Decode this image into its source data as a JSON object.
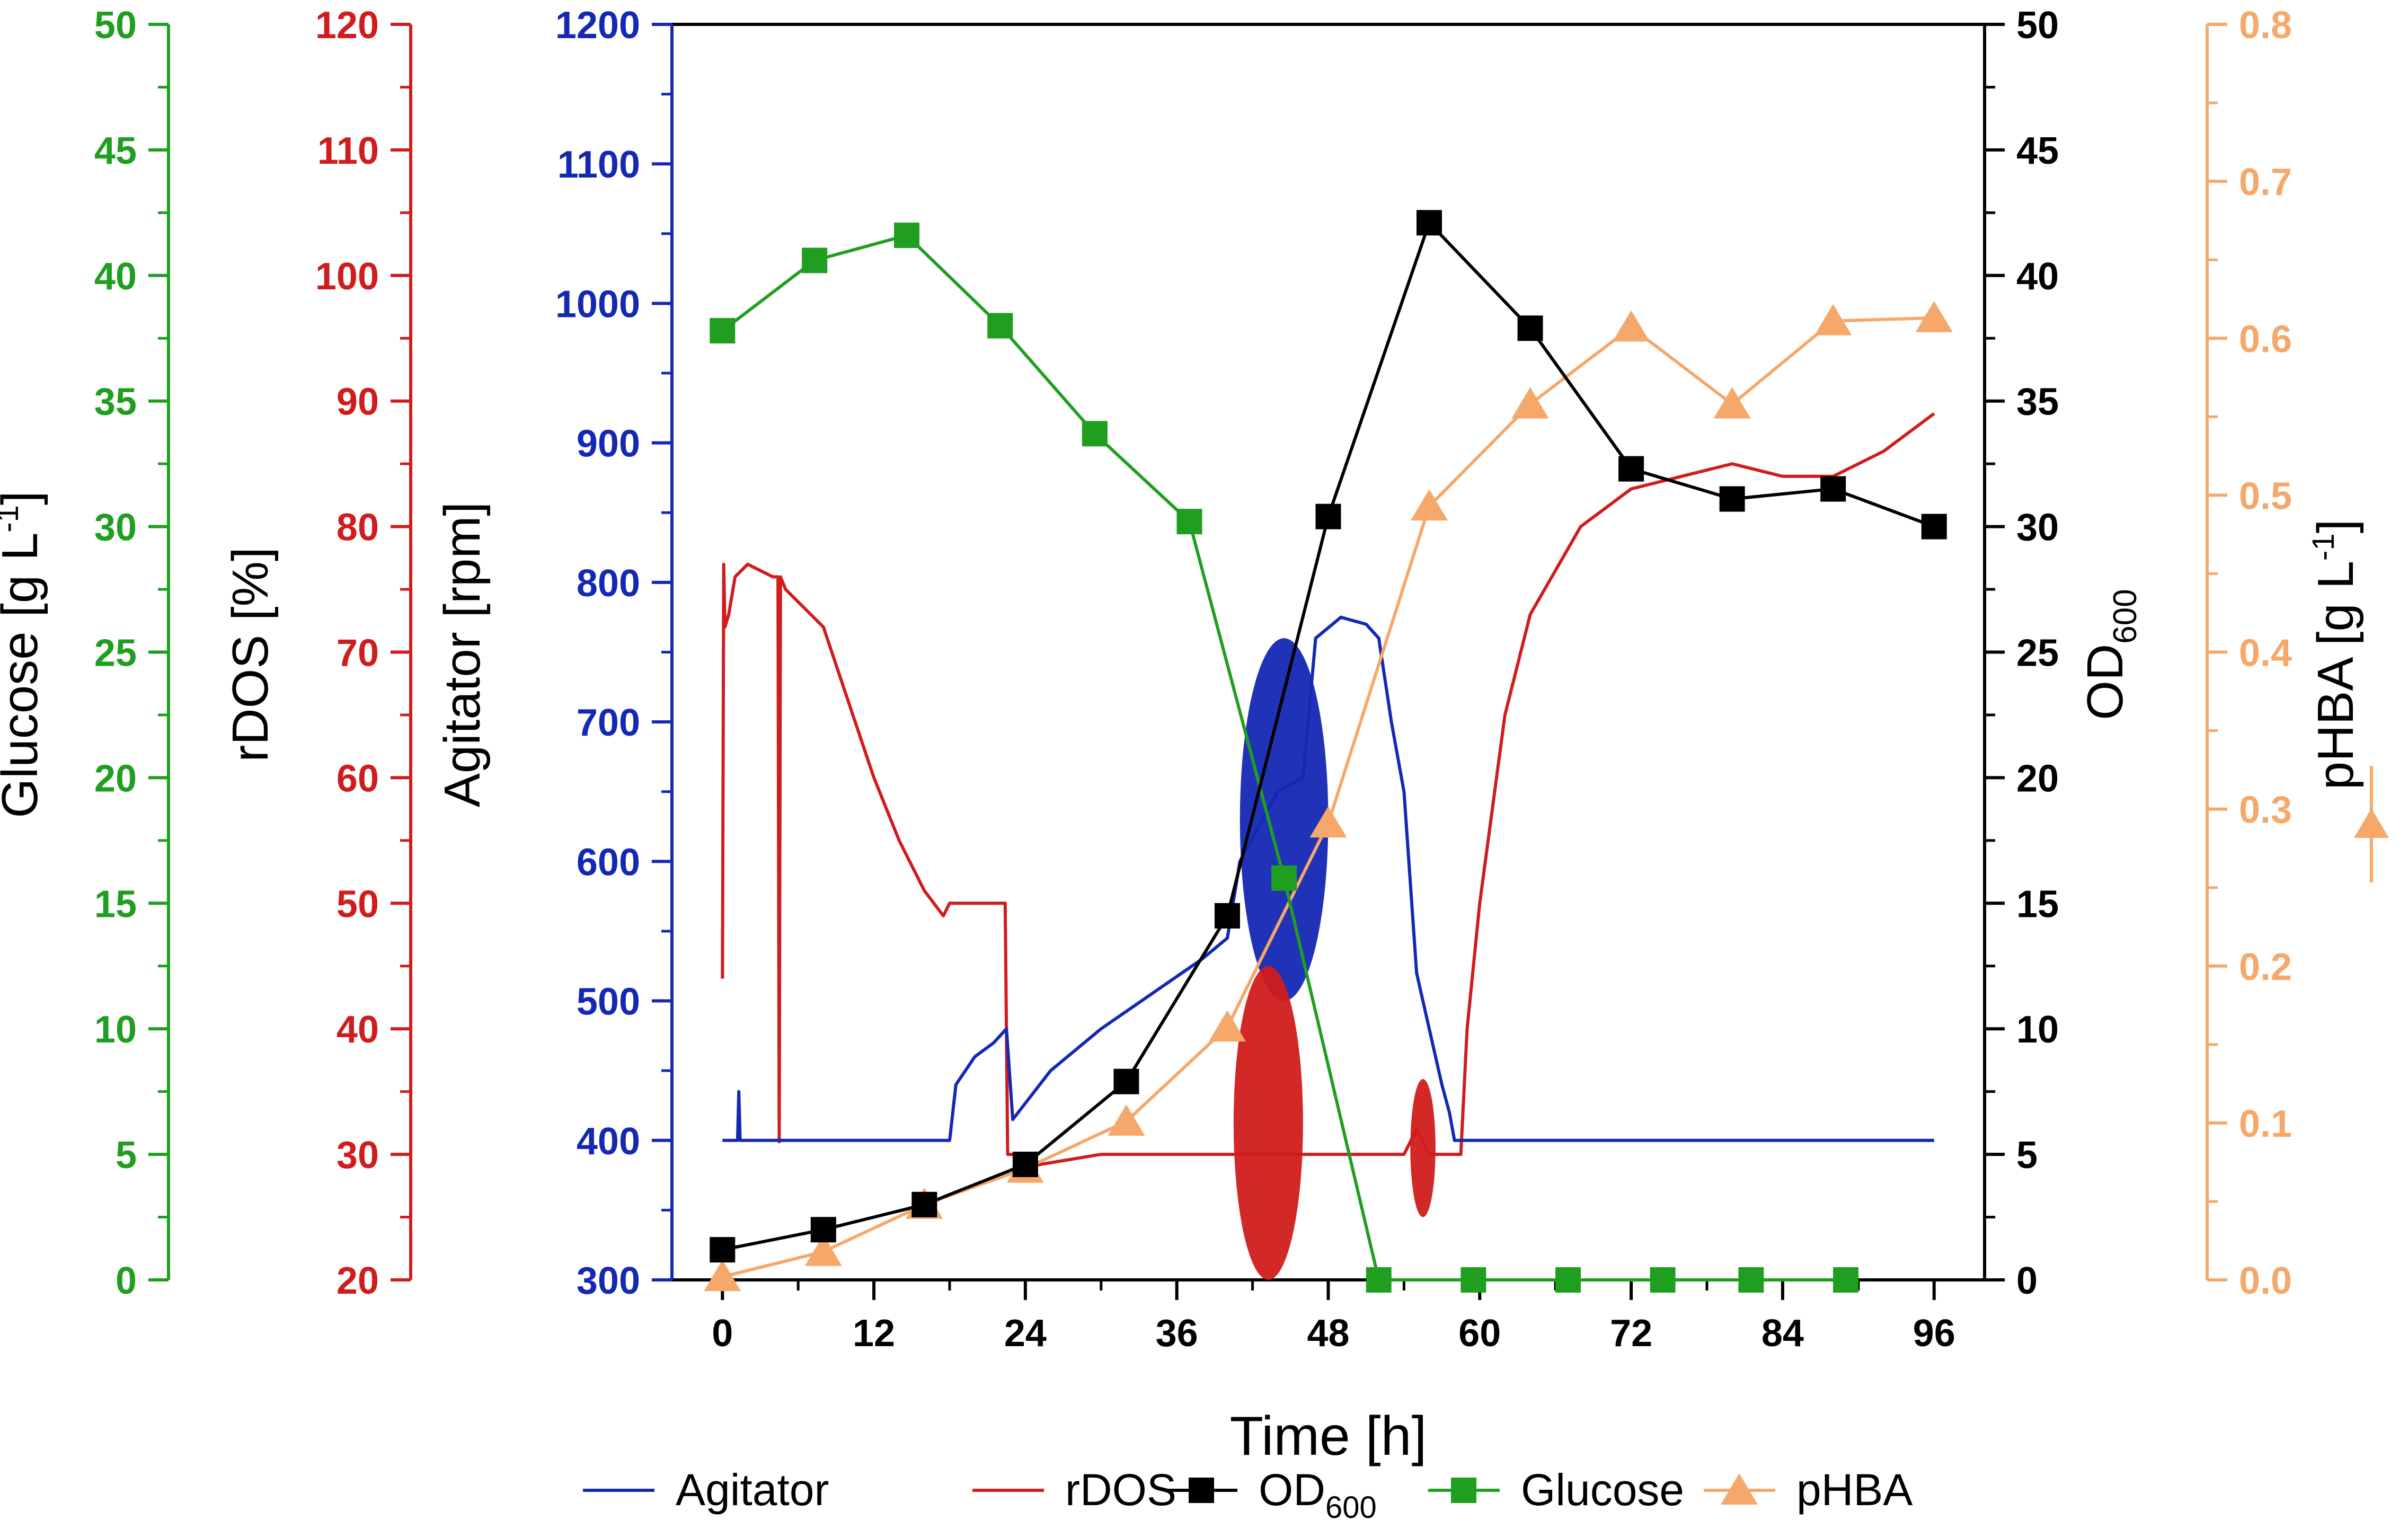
{
  "chart_data": {
    "type": "line",
    "x_axis": {
      "label": "Time [h]",
      "range": [
        -4,
        100
      ],
      "ticks": [
        0,
        12,
        24,
        36,
        48,
        60,
        72,
        84,
        96
      ],
      "minor_step": 6
    },
    "axes": [
      {
        "id": "glucose",
        "label_main": "Glucose [g L",
        "label_sup": "-1",
        "label_close": "]",
        "range": [
          0,
          50
        ],
        "ticks": [
          0,
          5,
          10,
          15,
          20,
          25,
          30,
          35,
          40,
          45,
          50
        ],
        "color": "#1f9e1f",
        "decimals": 0,
        "minor_per_major": 2
      },
      {
        "id": "rdos",
        "label_main": "rDOS [%]",
        "range": [
          20,
          120
        ],
        "ticks": [
          20,
          30,
          40,
          50,
          60,
          70,
          80,
          90,
          100,
          110,
          120
        ],
        "color": "#d01c1c",
        "decimals": 0,
        "minor_per_major": 2
      },
      {
        "id": "agitator",
        "label_main": "Agitator [rpm]",
        "range": [
          300,
          1200
        ],
        "ticks": [
          300,
          400,
          500,
          600,
          700,
          800,
          900,
          1000,
          1100,
          1200
        ],
        "color": "#1428b4",
        "decimals": 0,
        "minor_per_major": 2
      },
      {
        "id": "od",
        "label_main": "OD",
        "label_sub": "600",
        "range": [
          0,
          50
        ],
        "ticks": [
          0,
          5,
          10,
          15,
          20,
          25,
          30,
          35,
          40,
          45,
          50
        ],
        "color": "#000000",
        "decimals": 0,
        "minor_per_major": 2
      },
      {
        "id": "phba",
        "label_main": "pHBA [g L",
        "label_sup": "-1",
        "label_close": "]",
        "range": [
          0,
          0.8
        ],
        "ticks": [
          0.0,
          0.1,
          0.2,
          0.3,
          0.4,
          0.5,
          0.6,
          0.7,
          0.8
        ],
        "color": "#f5a86a",
        "decimals": 1,
        "minor_per_major": 2
      }
    ],
    "series": [
      {
        "name": "OD",
        "name_sub": "600",
        "axis": "od",
        "marker": "square",
        "color": "#000000",
        "x": [
          0,
          8,
          16,
          24,
          32,
          40,
          48,
          56,
          64,
          72,
          80,
          88,
          96
        ],
        "y": [
          1.2,
          2.0,
          3.0,
          4.6,
          7.9,
          14.5,
          30.4,
          42.1,
          37.9,
          32.3,
          31.1,
          31.5,
          30.0
        ]
      },
      {
        "name": "Glucose",
        "axis": "glucose",
        "marker": "square",
        "color": "#1f9e1f",
        "x": [
          0,
          7.3,
          14.6,
          22,
          29.5,
          37,
          44.5,
          52,
          59.5,
          67,
          74.5,
          81.5,
          89
        ],
        "y": [
          37.8,
          40.6,
          41.6,
          38.0,
          33.7,
          30.2,
          16.0,
          0,
          0,
          0,
          0,
          0,
          0
        ]
      },
      {
        "name": "pHBA",
        "axis": "phba",
        "marker": "triangle",
        "color": "#f5a86a",
        "x": [
          0,
          8,
          16,
          24,
          32,
          40,
          48,
          56,
          64,
          72,
          80,
          88,
          96
        ],
        "y": [
          0.002,
          0.018,
          0.048,
          0.071,
          0.101,
          0.161,
          0.291,
          0.493,
          0.558,
          0.607,
          0.558,
          0.611,
          0.613
        ]
      },
      {
        "name": "Agitator",
        "axis": "agitator",
        "marker": "none",
        "color": "#1428b4",
        "x": [
          0,
          1.2,
          1.3,
          1.4,
          18,
          18.5,
          20,
          21.5,
          22.5,
          23,
          26,
          30,
          34,
          38,
          40,
          41,
          44,
          46,
          47,
          49,
          51,
          52,
          53,
          54,
          55,
          56,
          57,
          57.6,
          58,
          60,
          96
        ],
        "y": [
          400,
          400,
          435,
          400,
          400,
          440,
          460,
          470,
          480,
          415,
          450,
          480,
          505,
          530,
          545,
          600,
          650,
          660,
          760,
          775,
          770,
          760,
          700,
          650,
          520,
          480,
          440,
          420,
          400,
          400,
          400
        ]
      },
      {
        "name": "rDOS",
        "axis": "rdos",
        "marker": "none",
        "color": "#d01c1c",
        "x": [
          0,
          0.1,
          0.2,
          0.5,
          1,
          2,
          4,
          4.4,
          4.5,
          4.6,
          5,
          8,
          10,
          12,
          14,
          16,
          17.5,
          18,
          20,
          22,
          22.4,
          22.6,
          23,
          24,
          30,
          36,
          40,
          42,
          46,
          48,
          52,
          54,
          55,
          56,
          58,
          58.5,
          59,
          60,
          62,
          64,
          68,
          72,
          76,
          80,
          84,
          88,
          92,
          96
        ],
        "y": [
          44,
          77,
          72,
          73,
          76,
          77,
          76,
          76,
          31,
          76,
          75,
          72,
          66,
          60,
          55,
          51,
          49,
          50,
          50,
          50,
          50,
          30,
          30,
          29,
          30,
          30,
          30,
          30,
          30,
          30,
          30,
          30,
          32,
          30,
          30,
          30,
          40,
          50,
          65,
          73,
          80,
          83,
          84,
          85,
          84,
          84,
          86,
          89
        ]
      }
    ],
    "legend": [
      {
        "name": "Agitator",
        "color": "#1428b4",
        "marker": "none"
      },
      {
        "name": "rDOS",
        "color": "#d01c1c",
        "marker": "none"
      },
      {
        "name": "OD",
        "sub": "600",
        "color": "#000000",
        "marker": "square"
      },
      {
        "name": "Glucose",
        "color": "#1f9e1f",
        "marker": "square"
      },
      {
        "name": "pHBA",
        "color": "#f5a86a",
        "marker": "triangle"
      }
    ],
    "noise_bands": [
      {
        "series": "Agitator",
        "x_range": [
          41,
          48
        ],
        "y_range": [
          500,
          760
        ]
      },
      {
        "series": "rDOS",
        "x_range": [
          40.5,
          46
        ],
        "y_range": [
          20,
          45
        ]
      },
      {
        "series": "rDOS",
        "x_range": [
          54.5,
          56.5
        ],
        "y_range": [
          25,
          36
        ]
      }
    ],
    "legend_position": "bottom",
    "grid": false
  }
}
